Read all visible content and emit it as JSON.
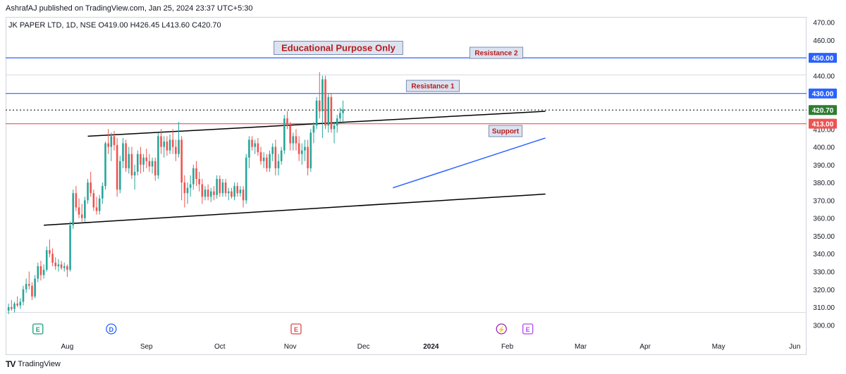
{
  "header": {
    "publisher": "AshrafAJ published on TradingView.com, Jan 25, 2024 23:37 UTC+5:30"
  },
  "legend": {
    "text": "JK PAPER LTD, 1D, NSE  O419.00  H426.45  L413.60  C420.70"
  },
  "footer": {
    "brand": "TradingView",
    "logo": "TV"
  },
  "annotations": {
    "title": "Educational Purpose Only",
    "resistance1": "Resistance 1",
    "resistance2": "Resistance 2",
    "support": "Support"
  },
  "price_badges": {
    "r2": "450.00",
    "r1": "430.00",
    "close": "420.70",
    "support": "413.00"
  },
  "event_markers": [
    {
      "label": "E",
      "icon": "earnings-icon",
      "color": "#1f9f7d",
      "date_index": 10
    },
    {
      "label": "D",
      "icon": "dividend-icon",
      "color": "#2962ff",
      "date_index": 35
    },
    {
      "label": "E",
      "icon": "earnings-icon",
      "color": "#e0474a",
      "date_index": 98
    },
    {
      "label": "⚡",
      "icon": "split-icon",
      "color": "#9c27b0",
      "date_index": 168
    },
    {
      "label": "E",
      "icon": "earnings-icon",
      "color": "#b24bf3",
      "date_index": 177
    }
  ],
  "colors": {
    "up": "#26a69a",
    "down": "#ef5350",
    "blue_line": "#2962ff",
    "red_line": "#ef5350",
    "dotted": "#4caf50",
    "trend": "#000000",
    "badge_text": "#b71c1c"
  },
  "chart_data": {
    "type": "candlestick",
    "title": "JK PAPER LTD, 1D, NSE",
    "ylim": [
      295,
      473
    ],
    "y_ticks": [
      300,
      310,
      320,
      330,
      340,
      350,
      360,
      370,
      380,
      390,
      400,
      410,
      420,
      430,
      440,
      450,
      460,
      470
    ],
    "x_labels": [
      {
        "label": "Aug",
        "index": 20
      },
      {
        "label": "Sep",
        "index": 47
      },
      {
        "label": "Oct",
        "index": 72
      },
      {
        "label": "Nov",
        "index": 96
      },
      {
        "label": "Dec",
        "index": 121
      },
      {
        "label": "2024",
        "index": 144
      },
      {
        "label": "Feb",
        "index": 170
      },
      {
        "label": "Mar",
        "index": 195
      },
      {
        "label": "Apr",
        "index": 217
      },
      {
        "label": "May",
        "index": 242
      },
      {
        "label": "Jun",
        "index": 268
      }
    ],
    "x_range": [
      -1,
      272
    ],
    "candles": [
      [
        308,
        312,
        306,
        310
      ],
      [
        310,
        314,
        308,
        309
      ],
      [
        309,
        313,
        307,
        312
      ],
      [
        312,
        316,
        310,
        311
      ],
      [
        311,
        315,
        309,
        313
      ],
      [
        313,
        322,
        311,
        320
      ],
      [
        320,
        326,
        318,
        323
      ],
      [
        323,
        330,
        320,
        322
      ],
      [
        322,
        324,
        314,
        316
      ],
      [
        316,
        328,
        315,
        326
      ],
      [
        326,
        335,
        324,
        333
      ],
      [
        333,
        336,
        325,
        328
      ],
      [
        328,
        334,
        326,
        331
      ],
      [
        331,
        344,
        330,
        342
      ],
      [
        342,
        348,
        338,
        340
      ],
      [
        340,
        343,
        333,
        335
      ],
      [
        335,
        338,
        331,
        333
      ],
      [
        333,
        337,
        330,
        334
      ],
      [
        334,
        336,
        331,
        332
      ],
      [
        332,
        335,
        330,
        333
      ],
      [
        333,
        334,
        327,
        331
      ],
      [
        331,
        358,
        330,
        356
      ],
      [
        356,
        376,
        354,
        374
      ],
      [
        374,
        378,
        364,
        366
      ],
      [
        366,
        371,
        360,
        362
      ],
      [
        362,
        368,
        358,
        360
      ],
      [
        360,
        372,
        358,
        370
      ],
      [
        370,
        382,
        368,
        380
      ],
      [
        380,
        386,
        372,
        374
      ],
      [
        374,
        376,
        364,
        366
      ],
      [
        366,
        372,
        362,
        364
      ],
      [
        364,
        373,
        362,
        371
      ],
      [
        371,
        380,
        368,
        378
      ],
      [
        378,
        403,
        376,
        402
      ],
      [
        402,
        410,
        396,
        400
      ],
      [
        400,
        408,
        392,
        406
      ],
      [
        406,
        409,
        398,
        401
      ],
      [
        401,
        405,
        372,
        376
      ],
      [
        376,
        395,
        374,
        392
      ],
      [
        392,
        405,
        388,
        402
      ],
      [
        402,
        404,
        386,
        388
      ],
      [
        388,
        400,
        385,
        396
      ],
      [
        396,
        400,
        382,
        384
      ],
      [
        384,
        390,
        376,
        386
      ],
      [
        386,
        398,
        384,
        396
      ],
      [
        396,
        400,
        385,
        390
      ],
      [
        390,
        396,
        386,
        394
      ],
      [
        394,
        399,
        388,
        392
      ],
      [
        392,
        396,
        386,
        389
      ],
      [
        389,
        394,
        385,
        392
      ],
      [
        392,
        394,
        381,
        384
      ],
      [
        384,
        408,
        382,
        406
      ],
      [
        406,
        410,
        396,
        400
      ],
      [
        400,
        406,
        394,
        403
      ],
      [
        403,
        406,
        395,
        398
      ],
      [
        398,
        407,
        396,
        404
      ],
      [
        404,
        410,
        396,
        400
      ],
      [
        400,
        404,
        392,
        396
      ],
      [
        396,
        414,
        394,
        404
      ],
      [
        404,
        406,
        370,
        380
      ],
      [
        380,
        384,
        366,
        374
      ],
      [
        374,
        380,
        368,
        377
      ],
      [
        377,
        384,
        372,
        379
      ],
      [
        379,
        390,
        376,
        388
      ],
      [
        388,
        392,
        378,
        382
      ],
      [
        382,
        386,
        375,
        379
      ],
      [
        379,
        382,
        368,
        372
      ],
      [
        372,
        378,
        370,
        376
      ],
      [
        376,
        379,
        370,
        372
      ],
      [
        372,
        377,
        369,
        375
      ],
      [
        375,
        378,
        370,
        373
      ],
      [
        373,
        384,
        371,
        382
      ],
      [
        382,
        384,
        372,
        374
      ],
      [
        374,
        382,
        372,
        380
      ],
      [
        380,
        382,
        372,
        374
      ],
      [
        374,
        377,
        370,
        375
      ],
      [
        375,
        377,
        371,
        372
      ],
      [
        372,
        380,
        370,
        378
      ],
      [
        378,
        380,
        372,
        374
      ],
      [
        374,
        378,
        372,
        376
      ],
      [
        376,
        378,
        366,
        370
      ],
      [
        370,
        396,
        368,
        394
      ],
      [
        394,
        406,
        388,
        404
      ],
      [
        404,
        406,
        398,
        400
      ],
      [
        400,
        404,
        396,
        402
      ],
      [
        402,
        405,
        395,
        397
      ],
      [
        397,
        400,
        390,
        392
      ],
      [
        392,
        397,
        388,
        394
      ],
      [
        394,
        396,
        386,
        388
      ],
      [
        388,
        398,
        386,
        396
      ],
      [
        396,
        402,
        392,
        400
      ],
      [
        400,
        404,
        384,
        388
      ],
      [
        388,
        396,
        384,
        392
      ],
      [
        392,
        400,
        390,
        398
      ],
      [
        398,
        418,
        396,
        416
      ],
      [
        416,
        420,
        410,
        412
      ],
      [
        412,
        414,
        398,
        402
      ],
      [
        402,
        408,
        398,
        406
      ],
      [
        406,
        410,
        398,
        402
      ],
      [
        402,
        406,
        392,
        396
      ],
      [
        396,
        402,
        390,
        398
      ],
      [
        398,
        404,
        392,
        400
      ],
      [
        400,
        404,
        384,
        388
      ],
      [
        388,
        410,
        386,
        408
      ],
      [
        408,
        414,
        402,
        412
      ],
      [
        412,
        428,
        410,
        426
      ],
      [
        426,
        442,
        416,
        420
      ],
      [
        420,
        440,
        405,
        438
      ],
      [
        438,
        440,
        410,
        412
      ],
      [
        412,
        430,
        408,
        428
      ],
      [
        428,
        430,
        408,
        410
      ],
      [
        410,
        414,
        402,
        412
      ],
      [
        412,
        418,
        408,
        416
      ],
      [
        416,
        422,
        414,
        419
      ],
      [
        419,
        426,
        414,
        421
      ]
    ]
  }
}
